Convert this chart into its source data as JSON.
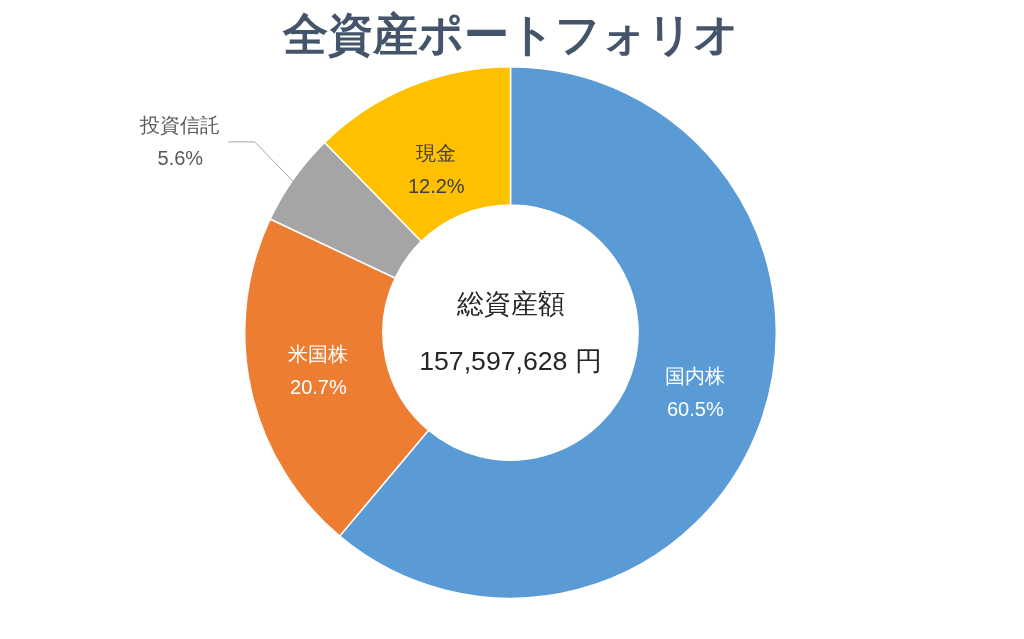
{
  "chart_data": {
    "type": "donut",
    "title": "全資産ポートフォリオ",
    "categories": [
      "国内株",
      "米国株",
      "投資信託",
      "現金"
    ],
    "values": [
      60.5,
      20.7,
      5.6,
      12.2
    ],
    "colors": [
      "#5b9bd5",
      "#ed7d31",
      "#a5a5a5",
      "#ffc000"
    ],
    "annotations": [
      "総資産額",
      "157,597,628 円"
    ],
    "value_labels": [
      "60.5%",
      "20.7%",
      "5.6%",
      "12.2%"
    ]
  }
}
